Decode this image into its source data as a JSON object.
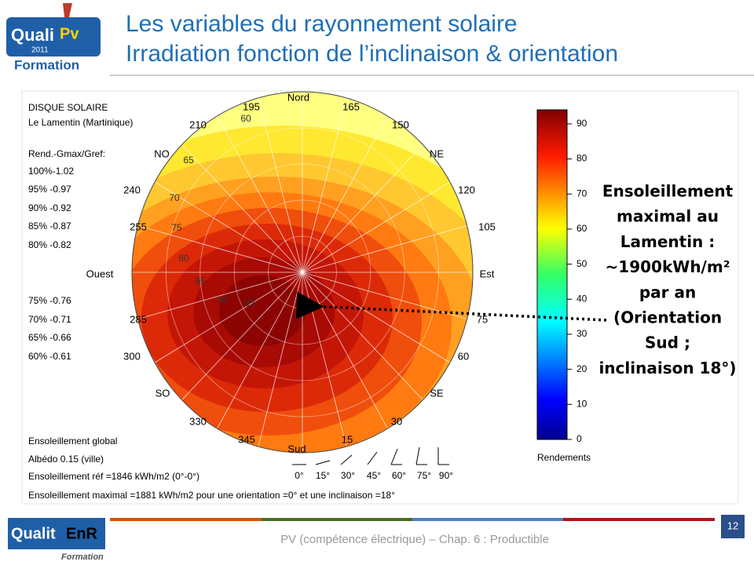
{
  "header": {
    "logo": {
      "brand_1": "Quali",
      "brand_2": "Pv",
      "year": "2011",
      "sub": "Formation"
    },
    "title_lines": [
      "Les variables du rayonnement solaire",
      "Irradiation fonction de l’inclinaison & orientation"
    ]
  },
  "legend_panel": {
    "title": "DISQUE SOLAIRE",
    "site": "Le Lamentin (Martinique)",
    "heading": "Rend.-Gmax/Gref:",
    "items_top": [
      "100%-1.02",
      "95%  -0.97",
      "90%  -0.92",
      "85%  -0.87",
      "80%  -0.82"
    ],
    "items_bottom": [
      "75%  -0.76",
      "70%  -0.71",
      "65%  -0.66",
      "60%  -0.61"
    ]
  },
  "disk": {
    "directions": {
      "north": "Nord",
      "south": "Sud",
      "east": "Est",
      "west": "Ouest",
      "nw": "NO",
      "ne": "NE",
      "sw": "SO",
      "se": "SE"
    },
    "azimuths": [
      "195",
      "165",
      "210",
      "150",
      "240",
      "120",
      "255",
      "105",
      "285",
      "75",
      "300",
      "60",
      "330",
      "30",
      "345",
      "15"
    ],
    "inclinations": [
      "60",
      "65",
      "70",
      "75",
      "80",
      "85",
      "90",
      "95"
    ]
  },
  "colorbar": {
    "range": [
      0,
      94
    ],
    "ticks": [
      0,
      10,
      20,
      30,
      40,
      50,
      60,
      70,
      80,
      90
    ],
    "label": "Rendements"
  },
  "notes": [
    "Ensoleillement global",
    "Albédo 0.15 (ville)",
    "Ensoleillement réf =1846 kWh/m2 (0°-0°)",
    "Ensoleillement maximal =1881 kWh/m2 pour une orientation =0° et une inclinaison =18°"
  ],
  "inclination_icons": [
    "0°",
    "15°",
    "30°",
    "45°",
    "60°",
    "75°",
    "90°"
  ],
  "callout": [
    "Ensoleillement",
    "maximal au",
    "Lamentin :",
    "~1900kWh/m²",
    "par an",
    "(Orientation",
    "Sud ;",
    "inclinaison 18°)"
  ],
  "footer": {
    "text": "PV (compétence électrique) – Chap. 6 : Productible",
    "page": "12",
    "logo_1": "Qualit",
    "logo_2": "EnR",
    "logo_3": "Formation"
  }
}
